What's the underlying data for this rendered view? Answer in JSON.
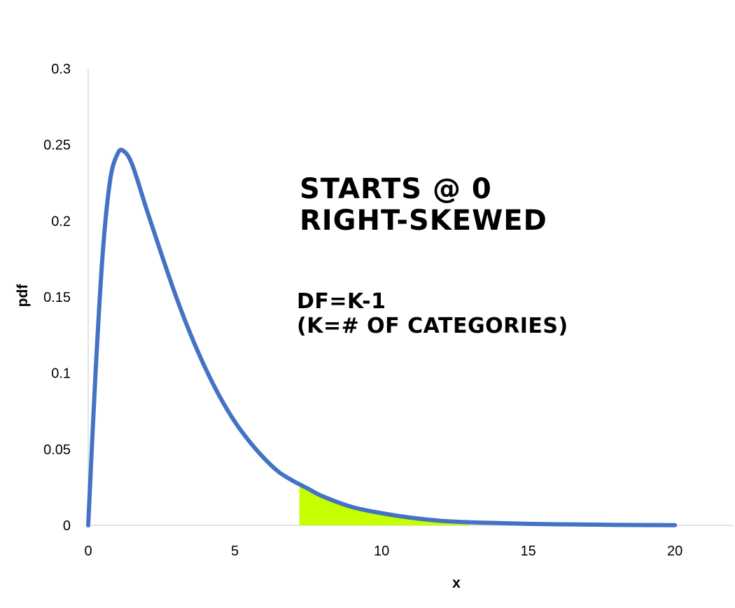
{
  "chart_data": {
    "type": "line",
    "title": "",
    "xlabel": "x",
    "ylabel": "pdf",
    "xlim": [
      0,
      22
    ],
    "ylim": [
      0,
      0.3
    ],
    "x_ticks": [
      "0",
      "5",
      "10",
      "15",
      "20"
    ],
    "y_ticks": [
      "0",
      "0.05",
      "0.1",
      "0.15",
      "0.2",
      "0.25",
      "0.3"
    ],
    "grid": false,
    "legend": "none",
    "series": [
      {
        "x": [
          0,
          0.25,
          0.5,
          0.75,
          1.0,
          1.2,
          1.5,
          2.0,
          2.5,
          3.0,
          3.5,
          4.0,
          4.5,
          5.0,
          5.5,
          6.0,
          6.5,
          7.0,
          7.2,
          7.5,
          8.0,
          9.0,
          10.0,
          11.0,
          12.0,
          13.0,
          14.0,
          15.0,
          16.0,
          17.0,
          18.0,
          19.0,
          20.0
        ],
        "y": [
          0.0,
          0.1,
          0.18,
          0.227,
          0.244,
          0.246,
          0.237,
          0.207,
          0.178,
          0.15,
          0.125,
          0.103,
          0.084,
          0.068,
          0.055,
          0.044,
          0.035,
          0.029,
          0.027,
          0.024,
          0.019,
          0.012,
          0.008,
          0.005,
          0.003,
          0.002,
          0.0015,
          0.001,
          0.0007,
          0.0005,
          0.0003,
          0.0002,
          0.0001
        ]
      }
    ],
    "shaded_region": {
      "x_from": 7.2,
      "x_to": 13.0
    },
    "annotations": [
      "STARTS @ 0",
      "RIGHT-SKEWED",
      "DF=K-1",
      "(K=# OF CATEGORIES)"
    ],
    "colors": {
      "line": "#4472c4",
      "shade": "#c6ff00",
      "axis": "#d9d9d9"
    }
  }
}
